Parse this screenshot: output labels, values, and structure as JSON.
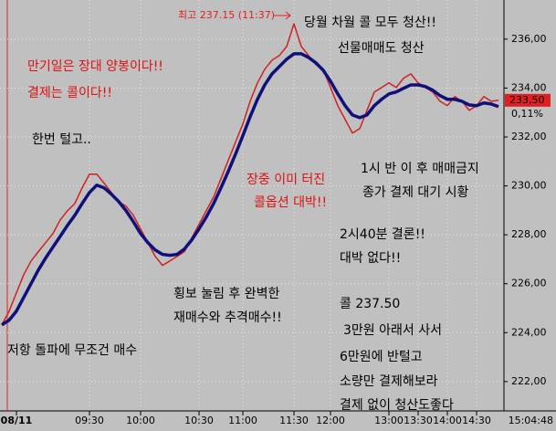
{
  "chart_data": {
    "type": "line",
    "series": [
      {
        "name": "price",
        "color": "#d02020",
        "values": [
          224.32,
          224.88,
          225.63,
          226.37,
          226.93,
          227.31,
          227.68,
          228.05,
          228.61,
          228.99,
          229.28,
          229.92,
          230.48,
          230.48,
          230.11,
          229.73,
          229.36,
          229.17,
          228.8,
          228.24,
          227.68,
          227.12,
          226.75,
          226.93,
          227.12,
          227.31,
          227.87,
          228.43,
          228.99,
          229.55,
          230.29,
          231.04,
          231.79,
          232.53,
          233.46,
          234.21,
          234.77,
          235.14,
          235.33,
          235.7,
          236.63,
          235.7,
          235.33,
          234.96,
          234.77,
          234.02,
          233.28,
          232.72,
          232.16,
          232.34,
          233.09,
          233.84,
          234.02,
          234.21,
          234.02,
          234.4,
          234.58,
          234.21,
          234.02,
          233.84,
          233.46,
          233.28,
          233.65,
          233.46,
          233.09,
          233.28,
          233.65,
          233.46,
          233.5
        ]
      },
      {
        "name": "average",
        "color": "#10107a",
        "values": [
          224.32,
          224.51,
          224.88,
          225.44,
          226.0,
          226.56,
          227.05,
          227.5,
          227.94,
          228.39,
          228.8,
          229.28,
          229.73,
          230.03,
          229.92,
          229.66,
          229.36,
          228.99,
          228.54,
          228.05,
          227.68,
          227.38,
          227.2,
          227.16,
          227.2,
          227.42,
          227.79,
          228.24,
          228.73,
          229.28,
          229.92,
          230.59,
          231.3,
          232.05,
          232.83,
          233.54,
          234.13,
          234.58,
          234.88,
          235.18,
          235.4,
          235.4,
          235.25,
          235.03,
          234.73,
          234.28,
          233.76,
          233.28,
          232.9,
          232.79,
          232.9,
          233.28,
          233.54,
          233.76,
          233.84,
          233.99,
          234.13,
          234.13,
          234.06,
          233.91,
          233.69,
          233.54,
          233.54,
          233.46,
          233.31,
          233.28,
          233.39,
          233.35,
          233.24
        ]
      }
    ],
    "xlim": [
      0,
      68
    ],
    "xticks": [
      {
        "value": 2,
        "label": "08/11"
      },
      {
        "value": 12,
        "label": "09:30"
      },
      {
        "value": 19,
        "label": "10:00"
      },
      {
        "value": 27,
        "label": "10:30"
      },
      {
        "value": 33,
        "label": "11:00"
      },
      {
        "value": 40,
        "label": "11:30"
      },
      {
        "value": 45,
        "label": "12:00"
      },
      {
        "value": 53,
        "label": "13:00"
      },
      {
        "value": 57,
        "label": "13:30"
      },
      {
        "value": 61,
        "label": "14:00"
      },
      {
        "value": 65,
        "label": "14:30"
      }
    ],
    "ylim": [
      220.8,
      237.6
    ],
    "yticks": [
      {
        "value": 222,
        "label": "222,00"
      },
      {
        "value": 224,
        "label": "224,00"
      },
      {
        "value": 226,
        "label": "226,00"
      },
      {
        "value": 228,
        "label": "228,00"
      },
      {
        "value": 230,
        "label": "230,00"
      },
      {
        "value": 232,
        "label": "232,00"
      },
      {
        "value": 234,
        "label": "234,00"
      },
      {
        "value": 236,
        "label": "236,00"
      }
    ],
    "grid": true,
    "last_price": {
      "value": 233.5,
      "label": "233,50"
    },
    "change": "0,11%",
    "time": "15:04:48",
    "peak_note": "최고 237.15 (11:37)",
    "annotations": [
      {
        "text": "당월 차월 콜 모두 청산!!",
        "color": "#000000"
      },
      {
        "text": "선물매매도 청산",
        "color": "#000000"
      },
      {
        "text": "만기일은 장대 양봉이다!!",
        "color": "#e01010"
      },
      {
        "text": "결제는 콜이다!!",
        "color": "#e01010"
      },
      {
        "text": "한번 털고..",
        "color": "#000000"
      },
      {
        "text": "1시 반 이 후 매매금지",
        "color": "#000000"
      },
      {
        "text": "종가 결제 대기 시황",
        "color": "#000000"
      },
      {
        "text": "장중 이미 터진",
        "color": "#e01010"
      },
      {
        "text": "콜옵션 대박!!",
        "color": "#e01010"
      },
      {
        "text": "2시40분 결론!!",
        "color": "#000000"
      },
      {
        "text": "대박 없다!!",
        "color": "#000000"
      },
      {
        "text": "횡보 눌림 후 완벽한",
        "color": "#000000"
      },
      {
        "text": "재매수와 추격매수!!",
        "color": "#000000"
      },
      {
        "text": "콜 237.50",
        "color": "#000000"
      },
      {
        "text": "3만원 아래서 사서",
        "color": "#000000"
      },
      {
        "text": "6만원에 반털고",
        "color": "#000000"
      },
      {
        "text": "저항 돌파에 무조건 매수",
        "color": "#000000"
      },
      {
        "text": "소량만 결제해보라",
        "color": "#000000"
      },
      {
        "text": "결제 없이 청산도좋다",
        "color": "#000000"
      }
    ]
  }
}
